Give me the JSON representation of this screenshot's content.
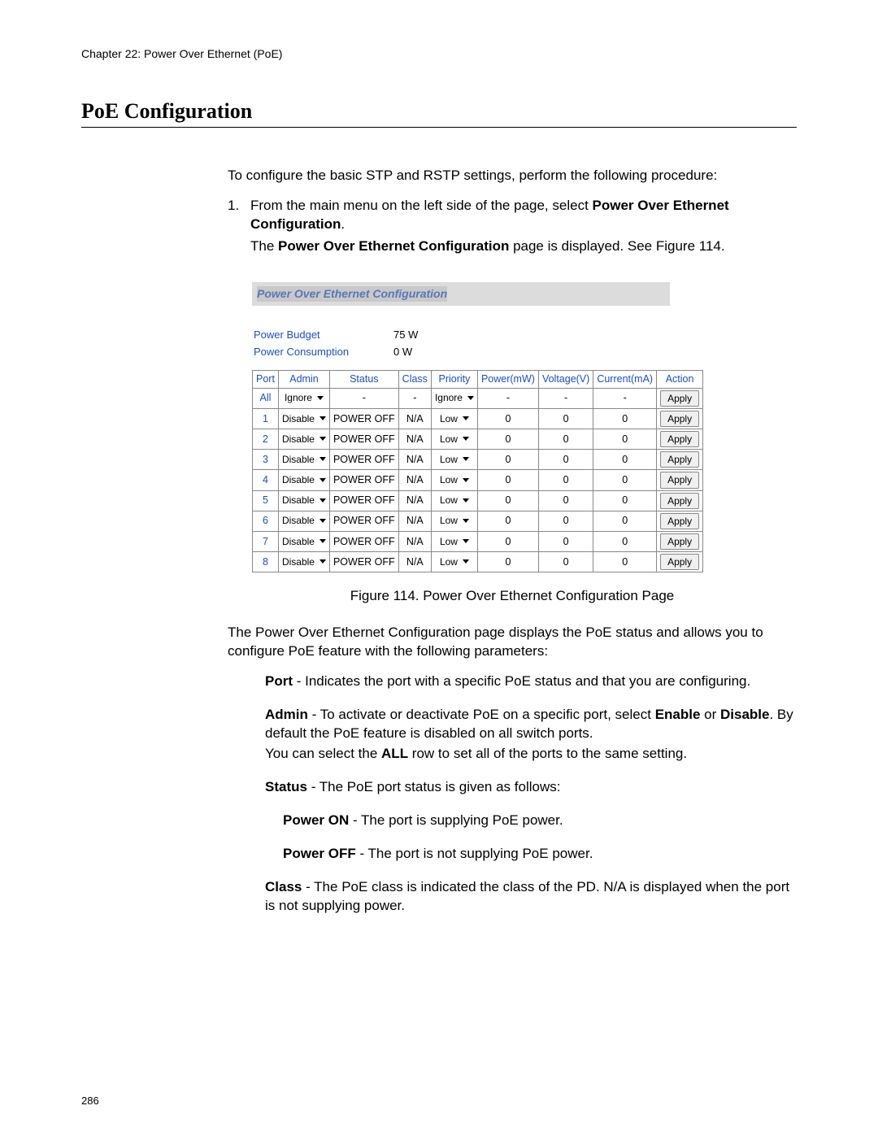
{
  "chapterHeader": "Chapter 22: Power Over Ethernet (PoE)",
  "heading": "PoE Configuration",
  "introText": "To configure the basic STP and RSTP settings, perform the following procedure:",
  "step1_num": "1.",
  "step1_a": "From the main menu on the left side of the page, select ",
  "step1_bold": "Power Over Ethernet Configuration",
  "step1_b": ".",
  "step1_c": "The ",
  "step1_bold2": "Power Over Ethernet Configuration",
  "step1_d": " page is displayed. See Figure 114.",
  "panelTitle": "Power Over Ethernet Configuration",
  "powerBudgetLabel": "Power Budget",
  "powerBudgetValue": "75 W",
  "powerConsumptionLabel": "Power Consumption",
  "powerConsumptionValue": "0 W",
  "headers": {
    "port": "Port",
    "admin": "Admin",
    "status": "Status",
    "class": "Class",
    "priority": "Priority",
    "power": "Power(mW)",
    "voltage": "Voltage(V)",
    "current": "Current(mA)",
    "action": "Action"
  },
  "allRow": {
    "port": "All",
    "admin": "Ignore",
    "status": "-",
    "class": "-",
    "priority": "Ignore",
    "power": "-",
    "voltage": "-",
    "current": "-",
    "action": "Apply"
  },
  "rows": [
    {
      "port": "1",
      "admin": "Disable",
      "status": "POWER OFF",
      "class": "N/A",
      "priority": "Low",
      "power": "0",
      "voltage": "0",
      "current": "0",
      "action": "Apply"
    },
    {
      "port": "2",
      "admin": "Disable",
      "status": "POWER OFF",
      "class": "N/A",
      "priority": "Low",
      "power": "0",
      "voltage": "0",
      "current": "0",
      "action": "Apply"
    },
    {
      "port": "3",
      "admin": "Disable",
      "status": "POWER OFF",
      "class": "N/A",
      "priority": "Low",
      "power": "0",
      "voltage": "0",
      "current": "0",
      "action": "Apply"
    },
    {
      "port": "4",
      "admin": "Disable",
      "status": "POWER OFF",
      "class": "N/A",
      "priority": "Low",
      "power": "0",
      "voltage": "0",
      "current": "0",
      "action": "Apply"
    },
    {
      "port": "5",
      "admin": "Disable",
      "status": "POWER OFF",
      "class": "N/A",
      "priority": "Low",
      "power": "0",
      "voltage": "0",
      "current": "0",
      "action": "Apply"
    },
    {
      "port": "6",
      "admin": "Disable",
      "status": "POWER OFF",
      "class": "N/A",
      "priority": "Low",
      "power": "0",
      "voltage": "0",
      "current": "0",
      "action": "Apply"
    },
    {
      "port": "7",
      "admin": "Disable",
      "status": "POWER OFF",
      "class": "N/A",
      "priority": "Low",
      "power": "0",
      "voltage": "0",
      "current": "0",
      "action": "Apply"
    },
    {
      "port": "8",
      "admin": "Disable",
      "status": "POWER OFF",
      "class": "N/A",
      "priority": "Low",
      "power": "0",
      "voltage": "0",
      "current": "0",
      "action": "Apply"
    }
  ],
  "figCaption": "Figure 114. Power Over Ethernet Configuration Page",
  "afterFigure": "The Power Over Ethernet Configuration page displays the PoE status and allows you to configure PoE feature with the following parameters:",
  "defPort_b": "Port",
  "defPort_t": " - Indicates the port with a specific PoE status and that you are configuring.",
  "defAdmin_b": "Admin",
  "defAdmin_t1": " - To activate or deactivate PoE on a specific port, select ",
  "defAdmin_en": "Enable",
  "defAdmin_or": " or ",
  "defAdmin_dis": "Disable",
  "defAdmin_t2": ". By default the PoE feature is disabled on all switch ports.",
  "defAdmin_t3a": "You can select the ",
  "defAdmin_all": "ALL",
  "defAdmin_t3b": " row to set all of the ports to the same setting.",
  "defStatus_b": "Status",
  "defStatus_t": " - The PoE port status is given as follows:",
  "defOn_b": "Power ON",
  "defOn_t": " - The port is supplying PoE power.",
  "defOff_b": "Power OFF",
  "defOff_t": " - The port is not supplying PoE power.",
  "defClass_b": "Class",
  "defClass_t": " - The PoE class is indicated the class of the PD. N/A is displayed when the port is not supplying power.",
  "pageNumber": "286",
  "colors": {
    "link": "#1a4fc9",
    "panelBg": "#dcdcdc",
    "border": "#888888",
    "btnBg": "#efefef"
  }
}
